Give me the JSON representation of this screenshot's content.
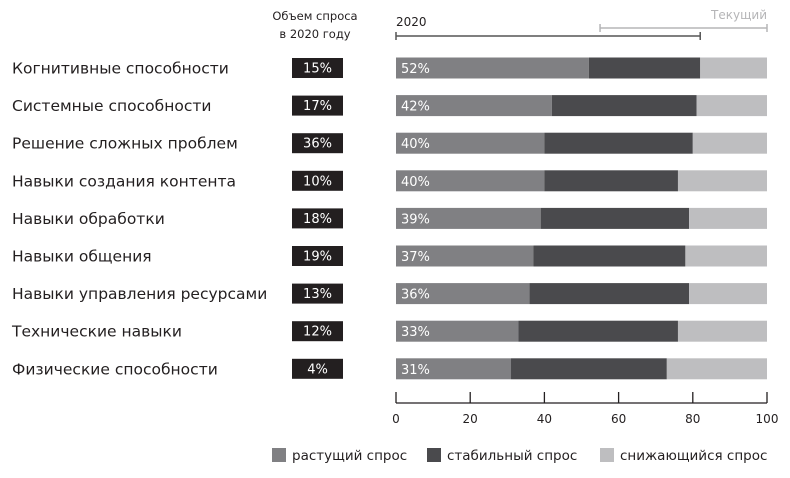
{
  "chart_data": {
    "type": "bar",
    "orientation": "horizontal",
    "stacked": true,
    "categories": [
      "Когнитивные способности",
      "Системные способности",
      "Решение сложных проблем",
      "Навыки создания контента",
      "Навыки обработки",
      "Навыки общения",
      "Навыки управления ресурсами",
      "Технические навыки",
      "Физические способности"
    ],
    "demand_2020_header": [
      "Объем спроса",
      "в 2020 году"
    ],
    "demand_2020": [
      "15%",
      "17%",
      "36%",
      "10%",
      "18%",
      "19%",
      "13%",
      "12%",
      "4%"
    ],
    "series": [
      {
        "name": "растущий спрос",
        "color": "#808083",
        "values": [
          52,
          42,
          40,
          40,
          39,
          37,
          36,
          33,
          31
        ]
      },
      {
        "name": "стабильный спрос",
        "color": "#4a4a4d",
        "values": [
          30,
          39,
          40,
          36,
          40,
          41,
          43,
          43,
          42
        ]
      },
      {
        "name": "снижающийся спрос",
        "color": "#bebec0",
        "values": [
          18,
          19,
          20,
          24,
          21,
          22,
          21,
          24,
          27
        ]
      }
    ],
    "growing_labels": [
      "52%",
      "42%",
      "40%",
      "40%",
      "39%",
      "37%",
      "36%",
      "33%",
      "31%"
    ],
    "xlim": [
      0,
      100
    ],
    "xticks": [
      "0",
      "20",
      "40",
      "60",
      "80",
      "100"
    ],
    "brackets": [
      {
        "label": "2020",
        "range": [
          0,
          82
        ]
      },
      {
        "label": "Текущий",
        "range": [
          55,
          100
        ]
      }
    ],
    "legend_position": "bottom-right",
    "grid": false
  }
}
